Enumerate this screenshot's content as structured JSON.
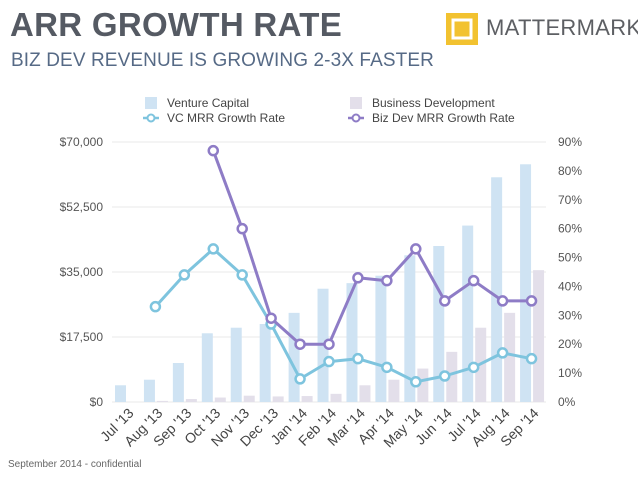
{
  "header": {
    "title": "ARR GROWTH RATE",
    "subtitle": "BIZ DEV REVENUE IS GROWING 2-3X FASTER",
    "brand": "MATTERMARK"
  },
  "footer": {
    "text": "September 2014 - confidential"
  },
  "colors": {
    "vc_bar": "#cfe3f3",
    "bd_bar": "#e3dfea",
    "vc_line": "#7ec4de",
    "bd_line": "#8e7cc6",
    "logo": "#f2c230",
    "axis_text": "#555555"
  },
  "chart_data": {
    "type": "bar+line",
    "categories": [
      "Jul '13",
      "Aug '13",
      "Sep '13",
      "Oct '13",
      "Nov '13",
      "Dec '13",
      "Jan '14",
      "Feb '14",
      "Mar '14",
      "Apr '14",
      "May '14",
      "Jun '14",
      "Jul '14",
      "Aug '14",
      "Sep '14"
    ],
    "y_left": {
      "ticks": [
        "$0",
        "$17,500",
        "$35,000",
        "$52,500",
        "$70,000"
      ],
      "ylim": [
        0,
        70000
      ]
    },
    "y_right": {
      "ticks": [
        "0%",
        "10%",
        "20%",
        "30%",
        "40%",
        "50%",
        "60%",
        "70%",
        "80%",
        "90%"
      ],
      "ylim": [
        0,
        0.9
      ]
    },
    "legend_position": "top-center",
    "bar_series": [
      {
        "name": "Venture Capital",
        "axis": "left",
        "values": [
          4500,
          6000,
          10500,
          18500,
          20000,
          21000,
          24000,
          30500,
          32000,
          34000,
          39500,
          42000,
          47500,
          60500,
          64000
        ]
      },
      {
        "name": "Business Development",
        "axis": "left",
        "values": [
          0,
          300,
          800,
          1200,
          1700,
          1500,
          1600,
          2200,
          4500,
          6000,
          9000,
          13500,
          20000,
          24000,
          35500
        ]
      }
    ],
    "line_series": [
      {
        "name": "VC MRR Growth Rate",
        "axis": "right",
        "values": [
          null,
          0.33,
          0.44,
          0.53,
          0.44,
          0.27,
          0.08,
          0.14,
          0.15,
          0.12,
          0.07,
          0.09,
          0.12,
          0.17,
          0.15
        ]
      },
      {
        "name": "Biz Dev MRR Growth Rate",
        "axis": "right",
        "values": [
          null,
          null,
          null,
          0.87,
          0.6,
          0.29,
          0.2,
          0.2,
          0.43,
          0.42,
          0.53,
          0.35,
          0.42,
          0.35,
          0.35
        ]
      }
    ]
  }
}
